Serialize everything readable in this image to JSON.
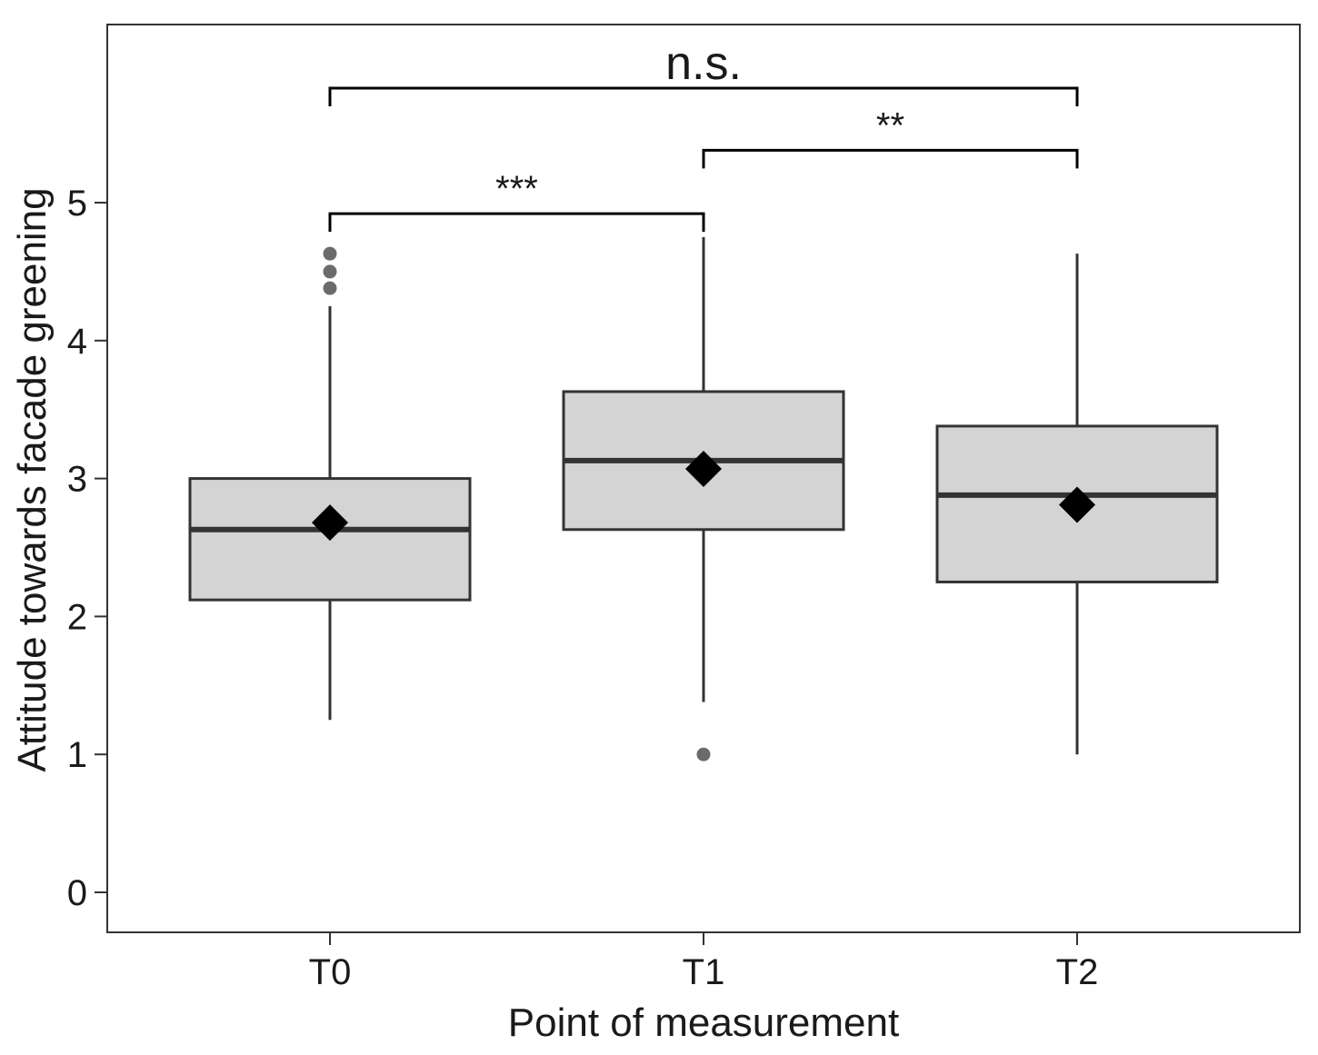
{
  "chart_data": {
    "type": "boxplot",
    "xlabel": "Point of measurement",
    "ylabel": "Attitude towards facade greening",
    "ylim": [
      -0.3,
      6.3
    ],
    "yticks": [
      "0",
      "1",
      "2",
      "3",
      "4",
      "5"
    ],
    "categories": [
      "T0",
      "T1",
      "T2"
    ],
    "boxes": [
      {
        "category": "T0",
        "whisker_low": 1.25,
        "q1": 2.12,
        "median": 2.63,
        "q3": 3.0,
        "whisker_high": 4.25,
        "mean": 2.68,
        "outliers": [
          4.38,
          4.5,
          4.63
        ]
      },
      {
        "category": "T1",
        "whisker_low": 1.38,
        "q1": 2.63,
        "median": 3.13,
        "q3": 3.63,
        "whisker_high": 4.75,
        "mean": 3.07,
        "outliers": [
          1.0
        ]
      },
      {
        "category": "T2",
        "whisker_low": 1.0,
        "q1": 2.25,
        "median": 2.88,
        "q3": 3.38,
        "whisker_high": 4.63,
        "mean": 2.81,
        "outliers": []
      }
    ],
    "significance": [
      {
        "from": "T0",
        "to": "T1",
        "label": "***",
        "y": 4.92
      },
      {
        "from": "T1",
        "to": "T2",
        "label": "**",
        "y": 5.38
      },
      {
        "from": "T0",
        "to": "T2",
        "label": "n.s.",
        "y": 5.83
      }
    ],
    "grid": false,
    "colors": {
      "box_fill": "#d4d4d4",
      "box_stroke": "#333333",
      "outlier": "#6b6b6b",
      "mean_marker": "#000000"
    }
  }
}
